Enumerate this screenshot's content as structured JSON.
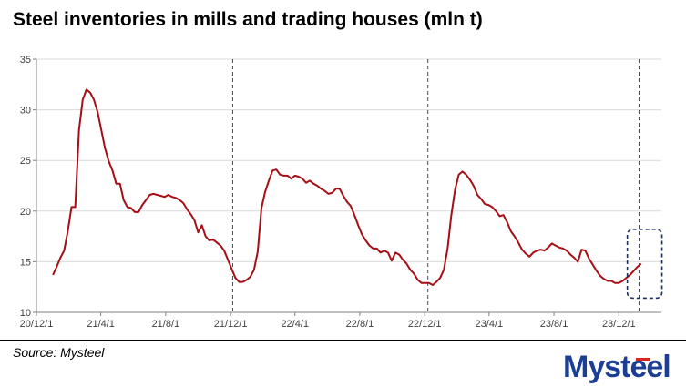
{
  "header": {
    "title": "Steel inventories in mills and trading houses (mln t)"
  },
  "footer": {
    "source": "Source: Mysteel"
  },
  "brand": {
    "logo_text": "Mysteel",
    "colors": {
      "primary": "#1c3f94",
      "accent": "#d7261e"
    }
  },
  "chart_data": {
    "type": "line",
    "title": "Steel inventories in mills and trading houses (mln t)",
    "xlabel": "",
    "ylabel": "",
    "ylim": [
      10,
      35
    ],
    "yticks": [
      "10",
      "15",
      "20",
      "25",
      "30",
      "35"
    ],
    "x_date_range": [
      "2020-12-01",
      "2024-02-19"
    ],
    "xticks": [
      {
        "date": "2020-12-01",
        "label": "20/12/1"
      },
      {
        "date": "2021-04-01",
        "label": "21/4/1"
      },
      {
        "date": "2021-08-01",
        "label": "21/8/1"
      },
      {
        "date": "2021-12-01",
        "label": "21/12/1"
      },
      {
        "date": "2022-04-01",
        "label": "22/4/1"
      },
      {
        "date": "2022-08-01",
        "label": "22/8/1"
      },
      {
        "date": "2022-12-01",
        "label": "22/12/1"
      },
      {
        "date": "2023-04-01",
        "label": "23/4/1"
      },
      {
        "date": "2023-08-01",
        "label": "23/8/1"
      },
      {
        "date": "2023-12-01",
        "label": "23/12/1"
      }
    ],
    "grid": {
      "horizontal": true,
      "vertical": false,
      "color": "#d9d9d9"
    },
    "vertical_markers": [
      "2021-12-05",
      "2022-12-07",
      "2024-01-08"
    ],
    "highlight_box": {
      "x_from": "2023-12-17",
      "x_to": "2024-02-20",
      "y_from": 11.4,
      "y_to": 18.2
    },
    "series": [
      {
        "color": "#a50f15",
        "points": [
          [
            "2021-01-01",
            13.7
          ],
          [
            "2021-01-08",
            14.5
          ],
          [
            "2021-01-15",
            15.4
          ],
          [
            "2021-01-22",
            16.1
          ],
          [
            "2021-01-29",
            18.0
          ],
          [
            "2021-02-05",
            20.4
          ],
          [
            "2021-02-12",
            20.4
          ],
          [
            "2021-02-19",
            28.0
          ],
          [
            "2021-02-26",
            31.0
          ],
          [
            "2021-03-05",
            32.0
          ],
          [
            "2021-03-12",
            31.7
          ],
          [
            "2021-03-19",
            31.0
          ],
          [
            "2021-03-26",
            29.8
          ],
          [
            "2021-04-02",
            28.0
          ],
          [
            "2021-04-09",
            26.2
          ],
          [
            "2021-04-16",
            24.9
          ],
          [
            "2021-04-23",
            24.0
          ],
          [
            "2021-04-30",
            22.7
          ],
          [
            "2021-05-07",
            22.7
          ],
          [
            "2021-05-14",
            21.1
          ],
          [
            "2021-05-21",
            20.4
          ],
          [
            "2021-05-28",
            20.3
          ],
          [
            "2021-06-04",
            19.9
          ],
          [
            "2021-06-11",
            19.9
          ],
          [
            "2021-06-18",
            20.6
          ],
          [
            "2021-06-25",
            21.1
          ],
          [
            "2021-07-02",
            21.6
          ],
          [
            "2021-07-09",
            21.7
          ],
          [
            "2021-07-16",
            21.6
          ],
          [
            "2021-07-23",
            21.5
          ],
          [
            "2021-07-30",
            21.4
          ],
          [
            "2021-08-06",
            21.6
          ],
          [
            "2021-08-13",
            21.4
          ],
          [
            "2021-08-20",
            21.3
          ],
          [
            "2021-08-27",
            21.1
          ],
          [
            "2021-09-03",
            20.8
          ],
          [
            "2021-09-10",
            20.2
          ],
          [
            "2021-09-17",
            19.7
          ],
          [
            "2021-09-24",
            19.1
          ],
          [
            "2021-10-01",
            17.9
          ],
          [
            "2021-10-08",
            18.6
          ],
          [
            "2021-10-15",
            17.5
          ],
          [
            "2021-10-22",
            17.1
          ],
          [
            "2021-10-29",
            17.2
          ],
          [
            "2021-11-05",
            16.9
          ],
          [
            "2021-11-12",
            16.6
          ],
          [
            "2021-11-19",
            16.1
          ],
          [
            "2021-11-26",
            15.2
          ],
          [
            "2021-12-03",
            14.3
          ],
          [
            "2021-12-10",
            13.4
          ],
          [
            "2021-12-17",
            13.0
          ],
          [
            "2021-12-24",
            13.0
          ],
          [
            "2021-12-31",
            13.2
          ],
          [
            "2022-01-07",
            13.5
          ],
          [
            "2022-01-14",
            14.2
          ],
          [
            "2022-01-21",
            16.0
          ],
          [
            "2022-01-28",
            20.3
          ],
          [
            "2022-02-04",
            21.9
          ],
          [
            "2022-02-11",
            23.0
          ],
          [
            "2022-02-18",
            24.0
          ],
          [
            "2022-02-25",
            24.1
          ],
          [
            "2022-03-04",
            23.6
          ],
          [
            "2022-03-11",
            23.5
          ],
          [
            "2022-03-18",
            23.5
          ],
          [
            "2022-03-25",
            23.2
          ],
          [
            "2022-04-01",
            23.5
          ],
          [
            "2022-04-08",
            23.4
          ],
          [
            "2022-04-15",
            23.2
          ],
          [
            "2022-04-22",
            22.8
          ],
          [
            "2022-04-29",
            23.0
          ],
          [
            "2022-05-06",
            22.7
          ],
          [
            "2022-05-13",
            22.5
          ],
          [
            "2022-05-20",
            22.2
          ],
          [
            "2022-05-27",
            22.0
          ],
          [
            "2022-06-03",
            21.7
          ],
          [
            "2022-06-10",
            21.8
          ],
          [
            "2022-06-17",
            22.2
          ],
          [
            "2022-06-24",
            22.2
          ],
          [
            "2022-07-01",
            21.5
          ],
          [
            "2022-07-08",
            20.9
          ],
          [
            "2022-07-15",
            20.5
          ],
          [
            "2022-07-22",
            19.6
          ],
          [
            "2022-07-29",
            18.6
          ],
          [
            "2022-08-05",
            17.7
          ],
          [
            "2022-08-12",
            17.1
          ],
          [
            "2022-08-19",
            16.6
          ],
          [
            "2022-08-26",
            16.3
          ],
          [
            "2022-09-02",
            16.3
          ],
          [
            "2022-09-09",
            15.9
          ],
          [
            "2022-09-16",
            16.1
          ],
          [
            "2022-09-23",
            15.9
          ],
          [
            "2022-09-30",
            15.1
          ],
          [
            "2022-10-07",
            15.9
          ],
          [
            "2022-10-14",
            15.7
          ],
          [
            "2022-10-21",
            15.2
          ],
          [
            "2022-10-28",
            14.8
          ],
          [
            "2022-11-04",
            14.2
          ],
          [
            "2022-11-11",
            13.8
          ],
          [
            "2022-11-18",
            13.2
          ],
          [
            "2022-11-25",
            12.9
          ],
          [
            "2022-12-02",
            12.9
          ],
          [
            "2022-12-09",
            12.9
          ],
          [
            "2022-12-16",
            12.7
          ],
          [
            "2022-12-23",
            13.0
          ],
          [
            "2022-12-30",
            13.4
          ],
          [
            "2023-01-06",
            14.2
          ],
          [
            "2023-01-13",
            16.3
          ],
          [
            "2023-01-20",
            19.6
          ],
          [
            "2023-01-27",
            22.1
          ],
          [
            "2023-02-03",
            23.6
          ],
          [
            "2023-02-10",
            23.9
          ],
          [
            "2023-02-17",
            23.6
          ],
          [
            "2023-02-24",
            23.1
          ],
          [
            "2023-03-03",
            22.5
          ],
          [
            "2023-03-10",
            21.6
          ],
          [
            "2023-03-17",
            21.2
          ],
          [
            "2023-03-24",
            20.7
          ],
          [
            "2023-03-31",
            20.6
          ],
          [
            "2023-04-07",
            20.4
          ],
          [
            "2023-04-14",
            20.0
          ],
          [
            "2023-04-21",
            19.5
          ],
          [
            "2023-04-28",
            19.6
          ],
          [
            "2023-05-05",
            18.9
          ],
          [
            "2023-05-12",
            18.0
          ],
          [
            "2023-05-19",
            17.5
          ],
          [
            "2023-05-26",
            16.9
          ],
          [
            "2023-06-02",
            16.2
          ],
          [
            "2023-06-09",
            15.8
          ],
          [
            "2023-06-16",
            15.5
          ],
          [
            "2023-06-23",
            15.9
          ],
          [
            "2023-06-30",
            16.1
          ],
          [
            "2023-07-07",
            16.2
          ],
          [
            "2023-07-14",
            16.1
          ],
          [
            "2023-07-21",
            16.4
          ],
          [
            "2023-07-28",
            16.8
          ],
          [
            "2023-08-04",
            16.6
          ],
          [
            "2023-08-11",
            16.4
          ],
          [
            "2023-08-18",
            16.3
          ],
          [
            "2023-08-25",
            16.1
          ],
          [
            "2023-09-01",
            15.7
          ],
          [
            "2023-09-08",
            15.4
          ],
          [
            "2023-09-15",
            15.0
          ],
          [
            "2023-09-22",
            16.2
          ],
          [
            "2023-09-29",
            16.1
          ],
          [
            "2023-10-06",
            15.3
          ],
          [
            "2023-10-13",
            14.7
          ],
          [
            "2023-10-20",
            14.1
          ],
          [
            "2023-10-27",
            13.6
          ],
          [
            "2023-11-03",
            13.3
          ],
          [
            "2023-11-10",
            13.1
          ],
          [
            "2023-11-17",
            13.1
          ],
          [
            "2023-11-24",
            12.9
          ],
          [
            "2023-12-01",
            12.9
          ],
          [
            "2023-12-08",
            13.1
          ],
          [
            "2023-12-15",
            13.4
          ],
          [
            "2023-12-22",
            13.7
          ],
          [
            "2023-12-29",
            14.1
          ],
          [
            "2024-01-05",
            14.5
          ],
          [
            "2024-01-12",
            14.8
          ]
        ]
      }
    ]
  }
}
